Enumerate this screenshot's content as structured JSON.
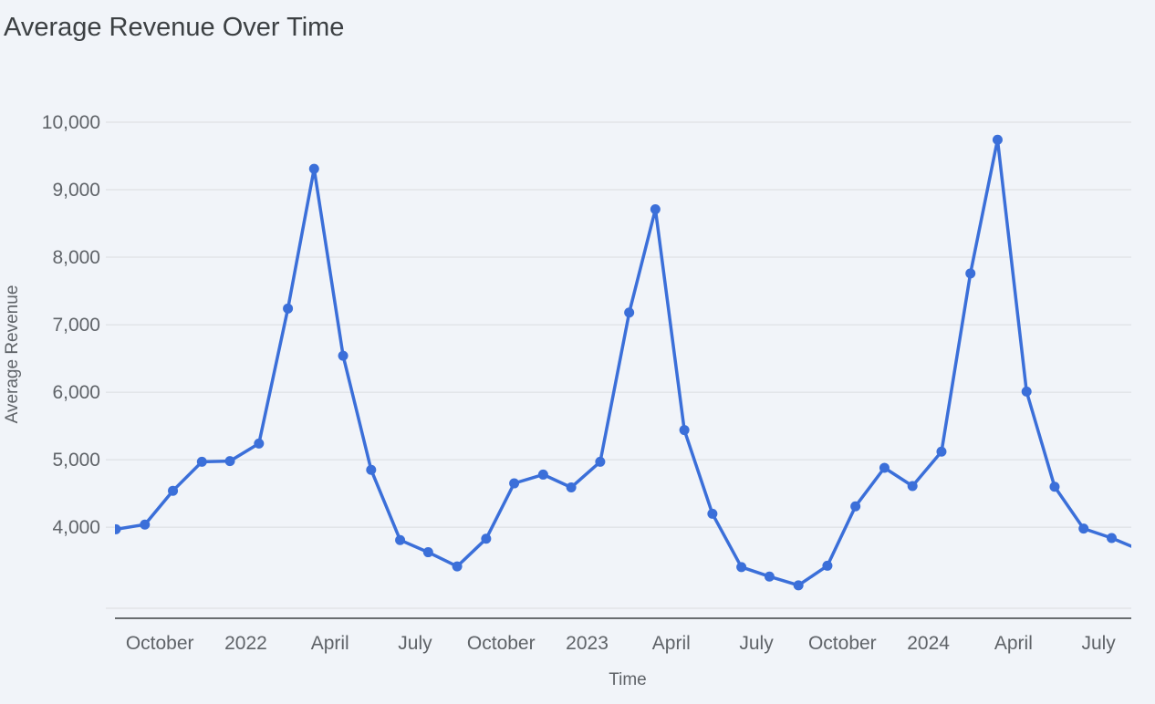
{
  "chart_data": {
    "type": "line",
    "title": "Average Revenue Over Time",
    "xlabel": "Time",
    "ylabel": "Average Revenue",
    "ylim": [
      2800,
      10000
    ],
    "yticks": [
      4000,
      5000,
      6000,
      7000,
      8000,
      9000,
      10000
    ],
    "ytick_labels": [
      "4,000",
      "5,000",
      "6,000",
      "7,000",
      "8,000",
      "9,000",
      "10,000"
    ],
    "x_range": [
      "2021-08-14",
      "2024-08-05"
    ],
    "xticks": [
      {
        "date": "2021-10-01",
        "label": "October"
      },
      {
        "date": "2022-01-01",
        "label": "2022"
      },
      {
        "date": "2022-04-01",
        "label": "April"
      },
      {
        "date": "2022-07-01",
        "label": "July"
      },
      {
        "date": "2022-10-01",
        "label": "October"
      },
      {
        "date": "2023-01-01",
        "label": "2023"
      },
      {
        "date": "2023-04-01",
        "label": "April"
      },
      {
        "date": "2023-07-01",
        "label": "July"
      },
      {
        "date": "2023-10-01",
        "label": "October"
      },
      {
        "date": "2024-01-01",
        "label": "2024"
      },
      {
        "date": "2024-04-01",
        "label": "April"
      },
      {
        "date": "2024-07-01",
        "label": "July"
      }
    ],
    "grid": true,
    "color": "#3b6fd9",
    "series": [
      {
        "x": [
          "2021-08-15",
          "2021-09-15",
          "2021-10-15",
          "2021-11-15",
          "2021-12-15",
          "2022-01-15",
          "2022-02-15",
          "2022-03-15",
          "2022-04-15",
          "2022-05-15",
          "2022-06-15",
          "2022-07-15",
          "2022-08-15",
          "2022-09-15",
          "2022-10-15",
          "2022-11-15",
          "2022-12-15",
          "2023-01-15",
          "2023-02-15",
          "2023-03-15",
          "2023-04-15",
          "2023-05-15",
          "2023-06-15",
          "2023-07-15",
          "2023-08-15",
          "2023-09-15",
          "2023-10-15",
          "2023-11-15",
          "2023-12-15",
          "2024-01-15",
          "2024-02-15",
          "2024-03-15",
          "2024-04-15",
          "2024-05-15",
          "2024-06-15",
          "2024-07-15",
          "2024-08-15"
        ],
        "y": [
          3970,
          4040,
          4540,
          4970,
          4980,
          5240,
          7240,
          9310,
          6540,
          4850,
          3810,
          3630,
          3420,
          3830,
          4650,
          4780,
          4590,
          4970,
          7180,
          8710,
          5440,
          4200,
          3410,
          3270,
          3140,
          3430,
          4310,
          4880,
          4610,
          5120,
          7760,
          9740,
          6010,
          4600,
          3980,
          3840,
          3660
        ]
      }
    ]
  }
}
